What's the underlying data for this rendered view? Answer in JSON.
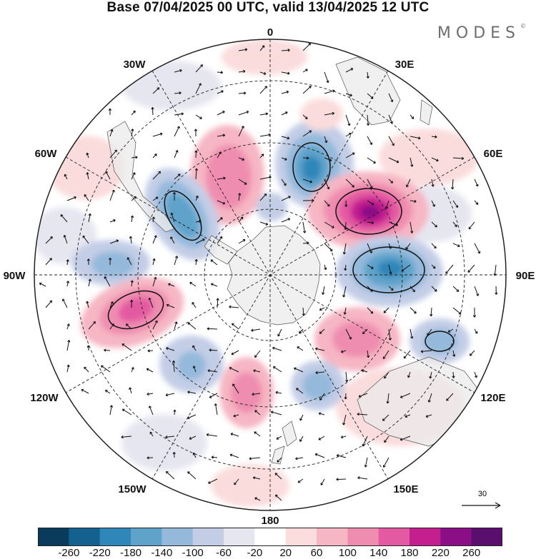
{
  "header": {
    "title": "Base 07/04/2025 00 UTC, valid 13/04/2025 12 UTC",
    "brand": "MODES",
    "brand_mark": "©"
  },
  "map": {
    "projection": "south-polar-stereographic",
    "longitude_labels": {
      "lon_0": "0",
      "lon_30e": "30E",
      "lon_60e": "60E",
      "lon_90e": "90E",
      "lon_120e": "120E",
      "lon_150e": "150E",
      "lon_180": "180",
      "lon_150w": "150W",
      "lon_120w": "120W",
      "lon_90w": "90W",
      "lon_60w": "60W",
      "lon_30w": "30W"
    },
    "reference_vector": {
      "label": "30"
    },
    "colors": {
      "negative_strong": "#0b3a5b",
      "positive_strong": "#5a0e6e",
      "land": "#ebebeb"
    }
  },
  "colorbar": {
    "ticks": [
      "-260",
      "-220",
      "-180",
      "-140",
      "-100",
      "-60",
      "-20",
      "20",
      "60",
      "100",
      "140",
      "180",
      "220",
      "260"
    ],
    "colors": [
      "#0b3b5c",
      "#14608f",
      "#2f86b9",
      "#5fa3cb",
      "#94b9db",
      "#c3cde6",
      "#e6e6f1",
      "#ffffff",
      "#fbdcdc",
      "#f6b6c3",
      "#ef8db0",
      "#e45aa2",
      "#c41f8f",
      "#8a0e86",
      "#5a0e6e"
    ]
  }
}
